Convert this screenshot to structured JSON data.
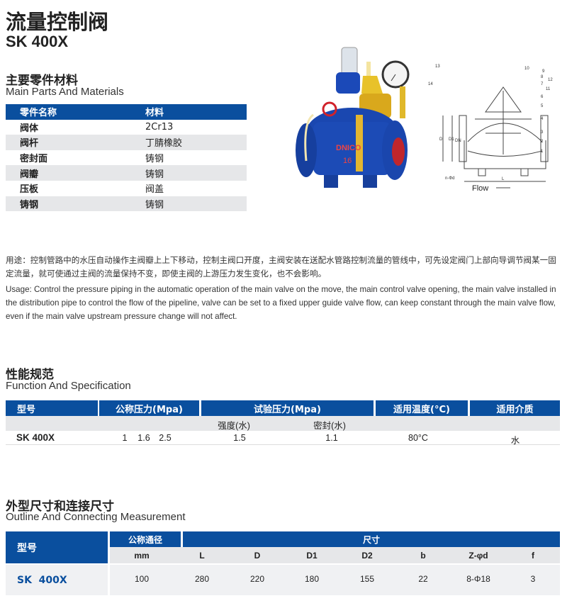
{
  "header": {
    "title": "流量控制阀",
    "model": "SK 400X"
  },
  "parts": {
    "title_cn": "主要零件材料",
    "title_en": "Main Parts And Materials",
    "columns": [
      "零件名称",
      "材料"
    ],
    "rows": [
      [
        "阀体",
        "2Cr13"
      ],
      [
        "阀杆",
        "丁腈橡胶"
      ],
      [
        "密封面",
        "铸钢"
      ],
      [
        "阀瓣",
        "铸钢"
      ],
      [
        "压板",
        "阀盖"
      ],
      [
        "铸钢",
        "铸钢"
      ]
    ]
  },
  "images": {
    "photo_logo": "DNICO",
    "photo_mark": "16",
    "diagram_labels": [
      "13",
      "14",
      "10",
      "9",
      "8",
      "12",
      "7",
      "11",
      "6",
      "5",
      "4",
      "3",
      "2",
      "1",
      "D",
      "D1",
      "DN",
      "n-Φd",
      "L",
      "Flow"
    ]
  },
  "usage": {
    "cn": "用途：控制管路中的水压自动操作主阀瓣上上下移动，控制主阀口开度，主阀安装在送配水管路控制流量的管线中，可先设定阀门上部向导调节阀某一固定流量，就可使通过主阀的流量保持不变，即使主阀的上游压力发生变化，也不会影响。",
    "en": "Usage: Control the pressure piping in the automatic operation of the main valve on the move, the main control valve opening, the main valve installed in the distribution pipe to control the flow of the pipeline, valve can be set to a fixed upper guide valve flow, can keep constant through the main valve flow, even if the main valve upstream pressure change will not affect."
  },
  "spec": {
    "title_cn": "性能规范",
    "title_en": "Function And Specification",
    "headers": [
      "型号",
      "公称压力(Mpa)",
      "试验压力(Mpa)",
      "适用温度(°C)",
      "适用介质"
    ],
    "sub_headers": [
      "强度(水)",
      "密封(水)"
    ],
    "row": {
      "model": "SK 400X",
      "pressures": [
        "1",
        "1.6",
        "2.5"
      ],
      "strength": "1.5",
      "seal": "1.1",
      "temp": "80°C",
      "medium": "水"
    }
  },
  "outline": {
    "title_cn": "外型尺寸和连接尺寸",
    "title_en": "Outline And Connecting Measurement",
    "headers": {
      "model": "型号",
      "dn": "公称通径",
      "dims": "尺寸"
    },
    "sub_headers": [
      "mm",
      "L",
      "D",
      "D1",
      "D2",
      "b",
      "Z-φd",
      "f"
    ],
    "row": {
      "model": "SK  400X",
      "values": [
        "100",
        "280",
        "220",
        "180",
        "155",
        "22",
        "8-Φ18",
        "3"
      ]
    }
  },
  "colors": {
    "accent": "#0a4f9e",
    "row_gray": "#e6e7e9",
    "model_blue": "#0a4f9e"
  }
}
